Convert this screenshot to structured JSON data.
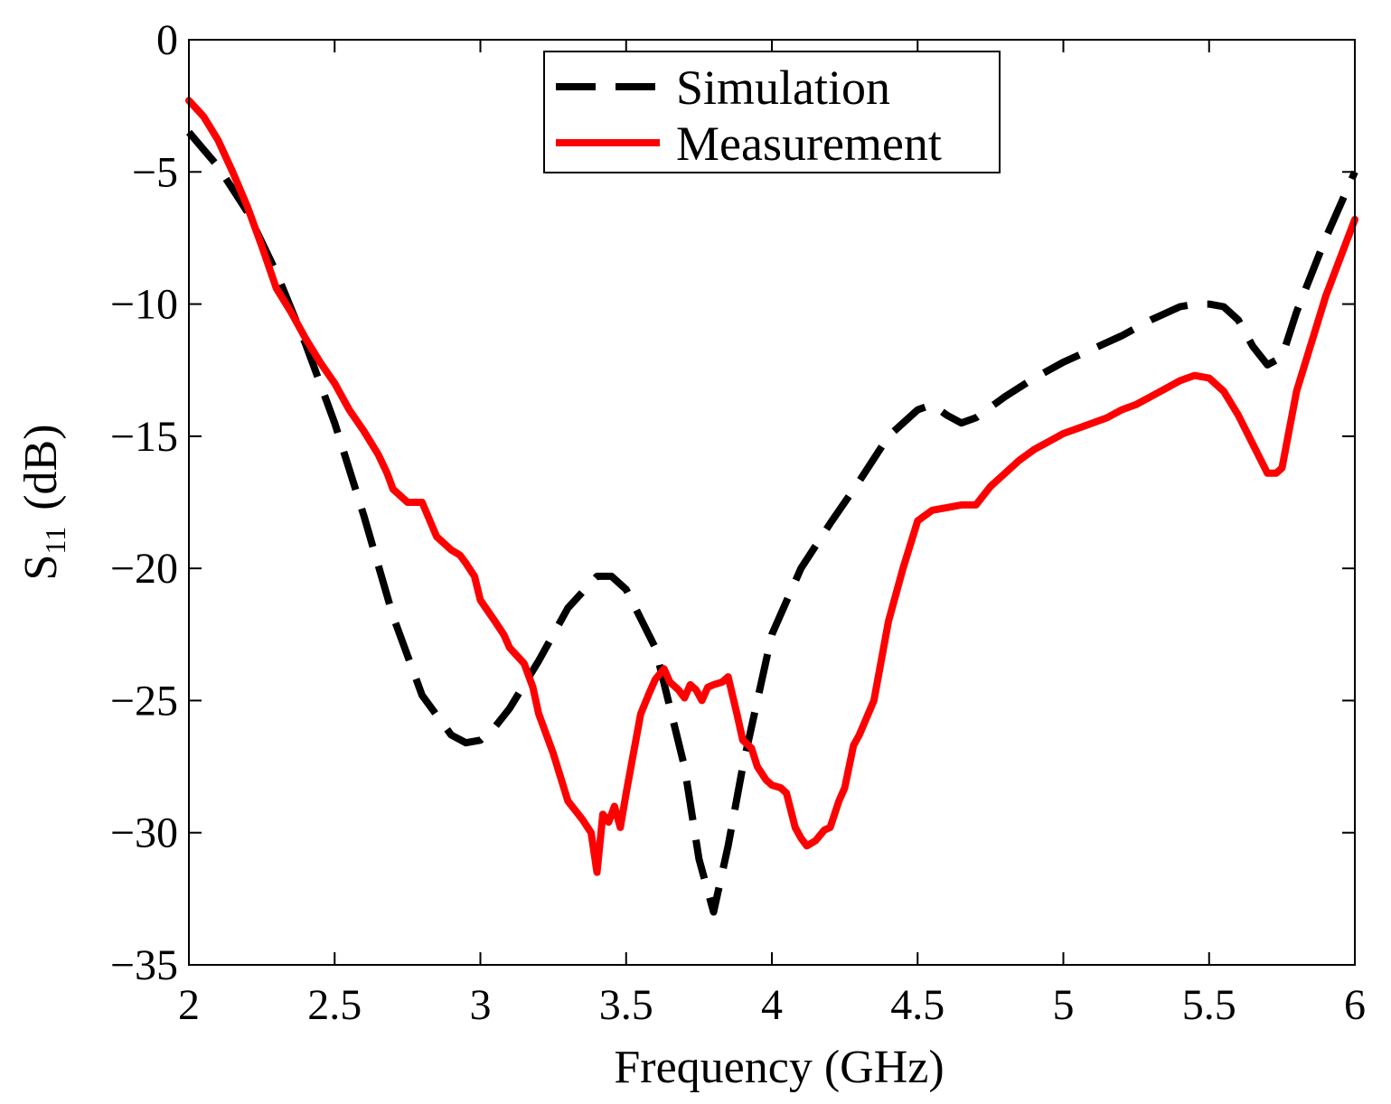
{
  "chart_data": {
    "type": "line",
    "title": "",
    "xlabel": "Frequency (GHz)",
    "ylabel_main": "S",
    "ylabel_sub": "11",
    "ylabel_unit": "(dB)",
    "xlim": [
      2,
      6
    ],
    "ylim": [
      -35,
      0
    ],
    "grid": false,
    "legend_position": "top-center",
    "xticks": [
      {
        "value": 2,
        "label": "2"
      },
      {
        "value": 2.5,
        "label": "2.5"
      },
      {
        "value": 3,
        "label": "3"
      },
      {
        "value": 3.5,
        "label": "3.5"
      },
      {
        "value": 4,
        "label": "4"
      },
      {
        "value": 4.5,
        "label": "4.5"
      },
      {
        "value": 5,
        "label": "5"
      },
      {
        "value": 5.5,
        "label": "5.5"
      },
      {
        "value": 6,
        "label": "6"
      }
    ],
    "yticks": [
      {
        "value": 0,
        "label": "0"
      },
      {
        "value": -5,
        "label": "−5"
      },
      {
        "value": -10,
        "label": "−10"
      },
      {
        "value": -15,
        "label": "−15"
      },
      {
        "value": -20,
        "label": "−20"
      },
      {
        "value": -25,
        "label": "−25"
      },
      {
        "value": -30,
        "label": "−30"
      },
      {
        "value": -35,
        "label": "−35"
      }
    ],
    "series": [
      {
        "name": "Simulation",
        "color": "#000000",
        "style": "dashed",
        "x": [
          2.0,
          2.1,
          2.2,
          2.3,
          2.4,
          2.5,
          2.6,
          2.7,
          2.8,
          2.9,
          2.95,
          3.0,
          3.05,
          3.1,
          3.2,
          3.3,
          3.4,
          3.45,
          3.5,
          3.6,
          3.7,
          3.75,
          3.8,
          3.85,
          3.9,
          4.0,
          4.1,
          4.2,
          4.3,
          4.4,
          4.5,
          4.55,
          4.6,
          4.65,
          4.7,
          4.8,
          4.9,
          5.0,
          5.1,
          5.2,
          5.3,
          5.4,
          5.45,
          5.5,
          5.55,
          5.6,
          5.65,
          5.7,
          5.75,
          5.8,
          5.9,
          6.0
        ],
        "y": [
          -3.5,
          -4.8,
          -6.5,
          -8.8,
          -11.5,
          -14.5,
          -18.0,
          -21.8,
          -24.8,
          -26.3,
          -26.6,
          -26.5,
          -26.0,
          -25.3,
          -23.5,
          -21.5,
          -20.3,
          -20.3,
          -20.8,
          -23.0,
          -27.5,
          -31.0,
          -33.0,
          -30.5,
          -27.5,
          -22.5,
          -20.0,
          -18.3,
          -16.7,
          -15.0,
          -14.0,
          -13.8,
          -14.2,
          -14.5,
          -14.3,
          -13.5,
          -12.8,
          -12.2,
          -11.7,
          -11.2,
          -10.6,
          -10.1,
          -10.0,
          -10.0,
          -10.1,
          -10.6,
          -11.6,
          -12.3,
          -12.0,
          -10.3,
          -7.5,
          -5.0
        ]
      },
      {
        "name": "Measurement",
        "color": "#ff0000",
        "style": "solid",
        "x": [
          2.0,
          2.05,
          2.1,
          2.15,
          2.2,
          2.25,
          2.3,
          2.35,
          2.4,
          2.45,
          2.5,
          2.55,
          2.6,
          2.65,
          2.68,
          2.7,
          2.75,
          2.8,
          2.85,
          2.9,
          2.93,
          2.95,
          2.98,
          3.0,
          3.05,
          3.08,
          3.1,
          3.15,
          3.18,
          3.2,
          3.25,
          3.3,
          3.35,
          3.38,
          3.4,
          3.42,
          3.44,
          3.46,
          3.48,
          3.5,
          3.52,
          3.55,
          3.58,
          3.6,
          3.63,
          3.65,
          3.68,
          3.7,
          3.72,
          3.74,
          3.76,
          3.78,
          3.8,
          3.83,
          3.85,
          3.88,
          3.9,
          3.93,
          3.95,
          3.98,
          4.0,
          4.03,
          4.05,
          4.08,
          4.1,
          4.12,
          4.15,
          4.18,
          4.2,
          4.23,
          4.25,
          4.28,
          4.3,
          4.35,
          4.4,
          4.45,
          4.5,
          4.55,
          4.6,
          4.65,
          4.7,
          4.75,
          4.8,
          4.85,
          4.9,
          4.95,
          5.0,
          5.05,
          5.1,
          5.15,
          5.2,
          5.25,
          5.3,
          5.35,
          5.4,
          5.45,
          5.5,
          5.55,
          5.6,
          5.65,
          5.7,
          5.73,
          5.75,
          5.8,
          5.9,
          6.0
        ],
        "y": [
          -2.3,
          -2.9,
          -3.8,
          -5.0,
          -6.3,
          -7.8,
          -9.4,
          -10.3,
          -11.3,
          -12.2,
          -13.0,
          -14.0,
          -14.8,
          -15.7,
          -16.4,
          -17.0,
          -17.5,
          -17.5,
          -18.8,
          -19.3,
          -19.5,
          -19.8,
          -20.3,
          -21.2,
          -22.0,
          -22.5,
          -23.0,
          -23.6,
          -24.5,
          -25.5,
          -27.0,
          -28.8,
          -29.5,
          -30.0,
          -31.5,
          -29.3,
          -29.6,
          -29.0,
          -29.8,
          -28.5,
          -27.3,
          -25.5,
          -24.7,
          -24.2,
          -23.8,
          -24.3,
          -24.6,
          -24.9,
          -24.4,
          -24.6,
          -25.0,
          -24.5,
          -24.4,
          -24.3,
          -24.1,
          -25.5,
          -26.5,
          -26.8,
          -27.5,
          -28.0,
          -28.2,
          -28.3,
          -28.5,
          -29.8,
          -30.2,
          -30.5,
          -30.3,
          -29.9,
          -29.8,
          -28.8,
          -28.3,
          -26.7,
          -26.3,
          -25.0,
          -22.0,
          -20.0,
          -18.2,
          -17.8,
          -17.7,
          -17.6,
          -17.6,
          -16.9,
          -16.4,
          -15.9,
          -15.5,
          -15.2,
          -14.9,
          -14.7,
          -14.5,
          -14.3,
          -14.0,
          -13.8,
          -13.5,
          -13.2,
          -12.9,
          -12.7,
          -12.8,
          -13.3,
          -14.2,
          -15.3,
          -16.4,
          -16.4,
          -16.2,
          -13.3,
          -9.7,
          -6.8
        ]
      }
    ]
  }
}
